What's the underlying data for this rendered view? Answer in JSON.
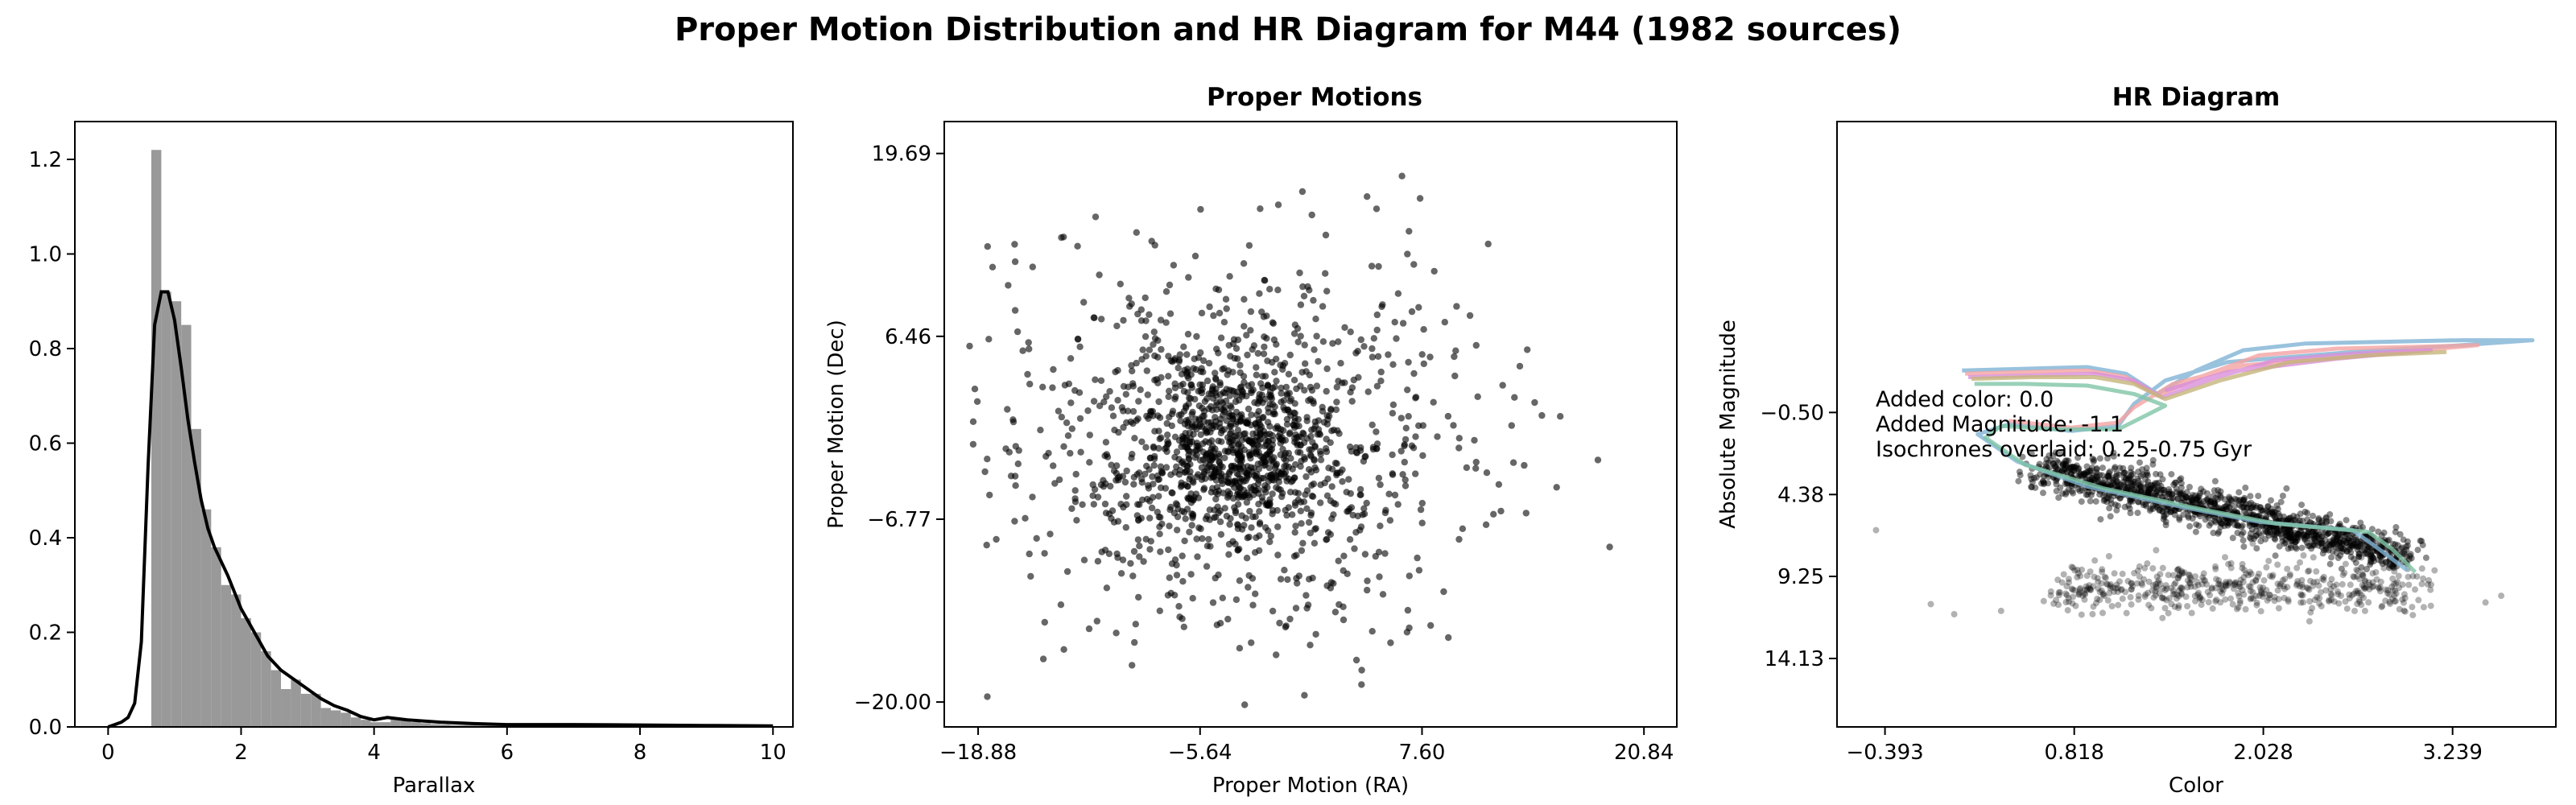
{
  "figure": {
    "suptitle": "Proper Motion Distribution and HR Diagram for M44 (1982 sources)"
  },
  "chart_data": [
    {
      "type": "histogram",
      "title": "",
      "xlabel": "Parallax",
      "ylabel": "",
      "xlim": [
        -0.5,
        10.3
      ],
      "ylim": [
        0,
        1.28
      ],
      "xticks": [
        0,
        2,
        4,
        6,
        8,
        10
      ],
      "yticks": [
        0.0,
        0.2,
        0.4,
        0.6,
        0.8,
        1.0,
        1.2
      ],
      "bin_width": 0.15,
      "bins": [
        {
          "x": 0.65,
          "h": 1.22
        },
        {
          "x": 0.8,
          "h": 0.92
        },
        {
          "x": 0.95,
          "h": 0.9
        },
        {
          "x": 1.1,
          "h": 0.85
        },
        {
          "x": 1.25,
          "h": 0.63
        },
        {
          "x": 1.4,
          "h": 0.46
        },
        {
          "x": 1.55,
          "h": 0.38
        },
        {
          "x": 1.7,
          "h": 0.3
        },
        {
          "x": 1.85,
          "h": 0.28
        },
        {
          "x": 2.0,
          "h": 0.23
        },
        {
          "x": 2.15,
          "h": 0.2
        },
        {
          "x": 2.3,
          "h": 0.16
        },
        {
          "x": 2.45,
          "h": 0.12
        },
        {
          "x": 2.6,
          "h": 0.08
        },
        {
          "x": 2.75,
          "h": 0.1
        },
        {
          "x": 2.9,
          "h": 0.07
        },
        {
          "x": 3.05,
          "h": 0.07
        },
        {
          "x": 3.2,
          "h": 0.04
        },
        {
          "x": 3.35,
          "h": 0.035
        },
        {
          "x": 3.5,
          "h": 0.03
        },
        {
          "x": 3.65,
          "h": 0.02
        },
        {
          "x": 3.8,
          "h": 0.015
        },
        {
          "x": 3.95,
          "h": 0.01
        },
        {
          "x": 4.1,
          "h": 0.01
        },
        {
          "x": 4.25,
          "h": 0.02
        },
        {
          "x": 4.4,
          "h": 0.015
        },
        {
          "x": 4.55,
          "h": 0.01
        },
        {
          "x": 4.7,
          "h": 0.008
        },
        {
          "x": 4.85,
          "h": 0.006
        },
        {
          "x": 5.0,
          "h": 0.005
        },
        {
          "x": 5.15,
          "h": 0.004
        },
        {
          "x": 5.3,
          "h": 0.004
        },
        {
          "x": 5.45,
          "h": 0.006
        },
        {
          "x": 5.6,
          "h": 0.005
        },
        {
          "x": 5.75,
          "h": 0.003
        },
        {
          "x": 5.9,
          "h": 0.003
        },
        {
          "x": 6.05,
          "h": 0.004
        },
        {
          "x": 6.2,
          "h": 0.003
        },
        {
          "x": 6.35,
          "h": 0.002
        },
        {
          "x": 6.5,
          "h": 0.004
        },
        {
          "x": 6.65,
          "h": 0.002
        },
        {
          "x": 6.8,
          "h": 0.002
        },
        {
          "x": 6.95,
          "h": 0.003
        },
        {
          "x": 7.1,
          "h": 0.002
        },
        {
          "x": 7.25,
          "h": 0.002
        },
        {
          "x": 7.4,
          "h": 0.002
        },
        {
          "x": 7.55,
          "h": 0.003
        },
        {
          "x": 7.7,
          "h": 0.002
        },
        {
          "x": 7.85,
          "h": 0.002
        },
        {
          "x": 8.0,
          "h": 0.002
        },
        {
          "x": 8.15,
          "h": 0.003
        },
        {
          "x": 8.3,
          "h": 0.002
        },
        {
          "x": 8.45,
          "h": 0.002
        },
        {
          "x": 8.6,
          "h": 0.002
        },
        {
          "x": 8.75,
          "h": 0.002
        },
        {
          "x": 8.9,
          "h": 0.002
        },
        {
          "x": 9.05,
          "h": 0.002
        },
        {
          "x": 9.2,
          "h": 0.002
        },
        {
          "x": 9.35,
          "h": 0.002
        },
        {
          "x": 9.5,
          "h": 0.002
        },
        {
          "x": 9.65,
          "h": 0.002
        },
        {
          "x": 9.8,
          "h": 0.002
        }
      ],
      "kde": {
        "x": [
          0,
          0.1,
          0.2,
          0.3,
          0.4,
          0.5,
          0.6,
          0.7,
          0.8,
          0.9,
          1.0,
          1.1,
          1.2,
          1.3,
          1.4,
          1.5,
          1.6,
          1.8,
          2.0,
          2.2,
          2.4,
          2.6,
          2.8,
          3.0,
          3.2,
          3.4,
          3.6,
          3.8,
          4.0,
          4.2,
          4.5,
          5.0,
          5.5,
          6.0,
          7.0,
          8.0,
          9.0,
          10.0
        ],
        "y": [
          0,
          0.005,
          0.01,
          0.02,
          0.05,
          0.18,
          0.55,
          0.85,
          0.92,
          0.92,
          0.86,
          0.76,
          0.65,
          0.56,
          0.48,
          0.42,
          0.38,
          0.32,
          0.25,
          0.2,
          0.15,
          0.12,
          0.1,
          0.08,
          0.06,
          0.045,
          0.035,
          0.022,
          0.015,
          0.02,
          0.015,
          0.01,
          0.007,
          0.005,
          0.005,
          0.004,
          0.003,
          0.002
        ]
      },
      "kde_color": "#000000",
      "bar_color": "#999999"
    },
    {
      "type": "scatter",
      "title": "Proper Motions",
      "xlabel": "Proper Motion (RA)",
      "ylabel": "Proper Motion (Dec)",
      "xlim": [
        -20.9,
        22.8
      ],
      "ylim": [
        -21.8,
        22.0
      ],
      "xticks": [
        -18.88,
        -5.64,
        7.6,
        20.84
      ],
      "xtick_labels": [
        "−18.88",
        "−5.64",
        "7.60",
        "20.84"
      ],
      "yticks": [
        -20.0,
        -6.77,
        6.46,
        19.69
      ],
      "ytick_labels": [
        "−20.00",
        "−6.77",
        "6.46",
        "19.69"
      ],
      "n_points": 1982,
      "center": [
        -3.5,
        -1.5
      ],
      "point_color": "#000000"
    },
    {
      "type": "scatter",
      "title": "HR Diagram",
      "xlabel": "Color",
      "ylabel": "Absolute Magnitude",
      "xlim": [
        -0.7,
        3.9
      ],
      "ylim_inverted": [
        18.2,
        -17.8
      ],
      "xticks": [
        -0.393,
        0.818,
        2.028,
        3.239
      ],
      "xtick_labels": [
        "−0.393",
        "0.818",
        "2.028",
        "3.239"
      ],
      "yticks": [
        -0.5,
        4.38,
        9.25,
        14.13
      ],
      "ytick_labels": [
        "−0.50",
        "4.38",
        "9.25",
        "14.13"
      ],
      "annotation": [
        "Added color: 0.0",
        "Added Magnitude: -1.1",
        "Isochrones overlaid: 0.25-0.75 Gyr"
      ],
      "isochrones": [
        {
          "color": "#7fb3d5",
          "points": [
            [
              0.1,
              -3.0
            ],
            [
              0.5,
              -3.1
            ],
            [
              0.9,
              -3.2
            ],
            [
              1.15,
              -2.8
            ],
            [
              1.35,
              -1.6
            ],
            [
              1.6,
              -3.0
            ],
            [
              1.9,
              -4.2
            ],
            [
              2.3,
              -4.6
            ],
            [
              2.8,
              -4.7
            ],
            [
              3.3,
              -4.8
            ],
            [
              3.75,
              -4.8
            ],
            [
              3.3,
              -4.5
            ],
            [
              2.6,
              -4.1
            ],
            [
              1.8,
              -3.5
            ],
            [
              1.4,
              -2.4
            ],
            [
              1.2,
              -1.0
            ],
            [
              1.1,
              0.3
            ],
            [
              0.8,
              0.6
            ],
            [
              0.4,
              0.2
            ],
            [
              0.2,
              0.8
            ],
            [
              0.45,
              2.4
            ],
            [
              0.9,
              3.9
            ],
            [
              1.5,
              5.1
            ],
            [
              2.0,
              6.0
            ],
            [
              2.6,
              6.5
            ],
            [
              2.75,
              7.5
            ],
            [
              2.95,
              8.9
            ]
          ]
        },
        {
          "color": "#f4a3a3",
          "points": [
            [
              0.12,
              -2.8
            ],
            [
              0.5,
              -2.9
            ],
            [
              0.9,
              -3.0
            ],
            [
              1.15,
              -2.6
            ],
            [
              1.35,
              -1.5
            ],
            [
              1.65,
              -2.7
            ],
            [
              2.0,
              -3.9
            ],
            [
              2.5,
              -4.3
            ],
            [
              3.0,
              -4.4
            ],
            [
              3.4,
              -4.5
            ],
            [
              2.8,
              -4.0
            ],
            [
              1.9,
              -3.3
            ],
            [
              1.45,
              -2.2
            ],
            [
              1.2,
              -0.8
            ],
            [
              1.1,
              0.1
            ],
            [
              0.8,
              0.4
            ],
            [
              0.4,
              0.0
            ]
          ]
        },
        {
          "color": "#d98fd9",
          "points": [
            [
              0.14,
              -2.6
            ],
            [
              0.55,
              -2.7
            ],
            [
              0.95,
              -2.8
            ],
            [
              1.2,
              -2.4
            ],
            [
              1.38,
              -1.4
            ],
            [
              1.7,
              -2.5
            ],
            [
              2.1,
              -3.6
            ],
            [
              2.6,
              -4.0
            ],
            [
              3.1,
              -4.2
            ],
            [
              2.5,
              -3.7
            ],
            [
              1.8,
              -2.9
            ],
            [
              1.4,
              -1.8
            ]
          ]
        },
        {
          "color": "#c5b57a",
          "points": [
            [
              0.16,
              -2.5
            ],
            [
              0.55,
              -2.6
            ],
            [
              0.95,
              -2.6
            ],
            [
              1.2,
              -2.2
            ],
            [
              1.4,
              -1.3
            ],
            [
              1.75,
              -2.4
            ],
            [
              2.2,
              -3.5
            ],
            [
              2.7,
              -3.9
            ],
            [
              3.2,
              -4.1
            ]
          ]
        },
        {
          "color": "#7fc4a6",
          "points": [
            [
              0.18,
              -2.2
            ],
            [
              0.5,
              -2.2
            ],
            [
              0.9,
              -2.1
            ],
            [
              1.2,
              -1.6
            ],
            [
              1.4,
              -0.9
            ],
            [
              1.1,
              0.5
            ],
            [
              0.7,
              0.5
            ],
            [
              0.35,
              0.3
            ],
            [
              0.25,
              1.0
            ],
            [
              0.5,
              2.6
            ],
            [
              1.0,
              4.0
            ],
            [
              1.6,
              5.2
            ],
            [
              2.1,
              6.1
            ],
            [
              2.7,
              6.6
            ],
            [
              2.85,
              7.6
            ],
            [
              3.0,
              9.0
            ]
          ]
        }
      ],
      "point_color": "#000000"
    }
  ]
}
